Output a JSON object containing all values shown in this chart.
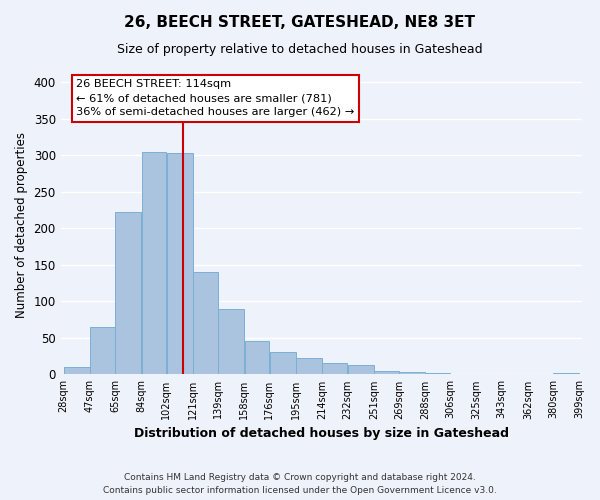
{
  "title": "26, BEECH STREET, GATESHEAD, NE8 3ET",
  "subtitle": "Size of property relative to detached houses in Gateshead",
  "xlabel": "Distribution of detached houses by size in Gateshead",
  "ylabel": "Number of detached properties",
  "bar_edges": [
    28,
    47,
    65,
    84,
    102,
    121,
    139,
    158,
    176,
    195,
    214,
    232,
    251,
    269,
    288,
    306,
    325,
    343,
    362,
    380,
    399
  ],
  "bar_heights": [
    10,
    65,
    222,
    305,
    303,
    140,
    90,
    46,
    31,
    23,
    16,
    13,
    5,
    3,
    2,
    1,
    1,
    1,
    1,
    2
  ],
  "bar_color": "#aac4e0",
  "bar_edgecolor": "#7bafd4",
  "vline_x": 114,
  "vline_color": "#cc0000",
  "ylim": [
    0,
    410
  ],
  "annotation_title": "26 BEECH STREET: 114sqm",
  "annotation_line1": "← 61% of detached houses are smaller (781)",
  "annotation_line2": "36% of semi-detached houses are larger (462) →",
  "footer_line1": "Contains HM Land Registry data © Crown copyright and database right 2024.",
  "footer_line2": "Contains public sector information licensed under the Open Government Licence v3.0.",
  "tick_labels": [
    "28sqm",
    "47sqm",
    "65sqm",
    "84sqm",
    "102sqm",
    "121sqm",
    "139sqm",
    "158sqm",
    "176sqm",
    "195sqm",
    "214sqm",
    "232sqm",
    "251sqm",
    "269sqm",
    "288sqm",
    "306sqm",
    "325sqm",
    "343sqm",
    "362sqm",
    "380sqm",
    "399sqm"
  ],
  "background_color": "#eef2fa",
  "grid_color": "#ffffff",
  "yticks": [
    0,
    50,
    100,
    150,
    200,
    250,
    300,
    350,
    400
  ]
}
